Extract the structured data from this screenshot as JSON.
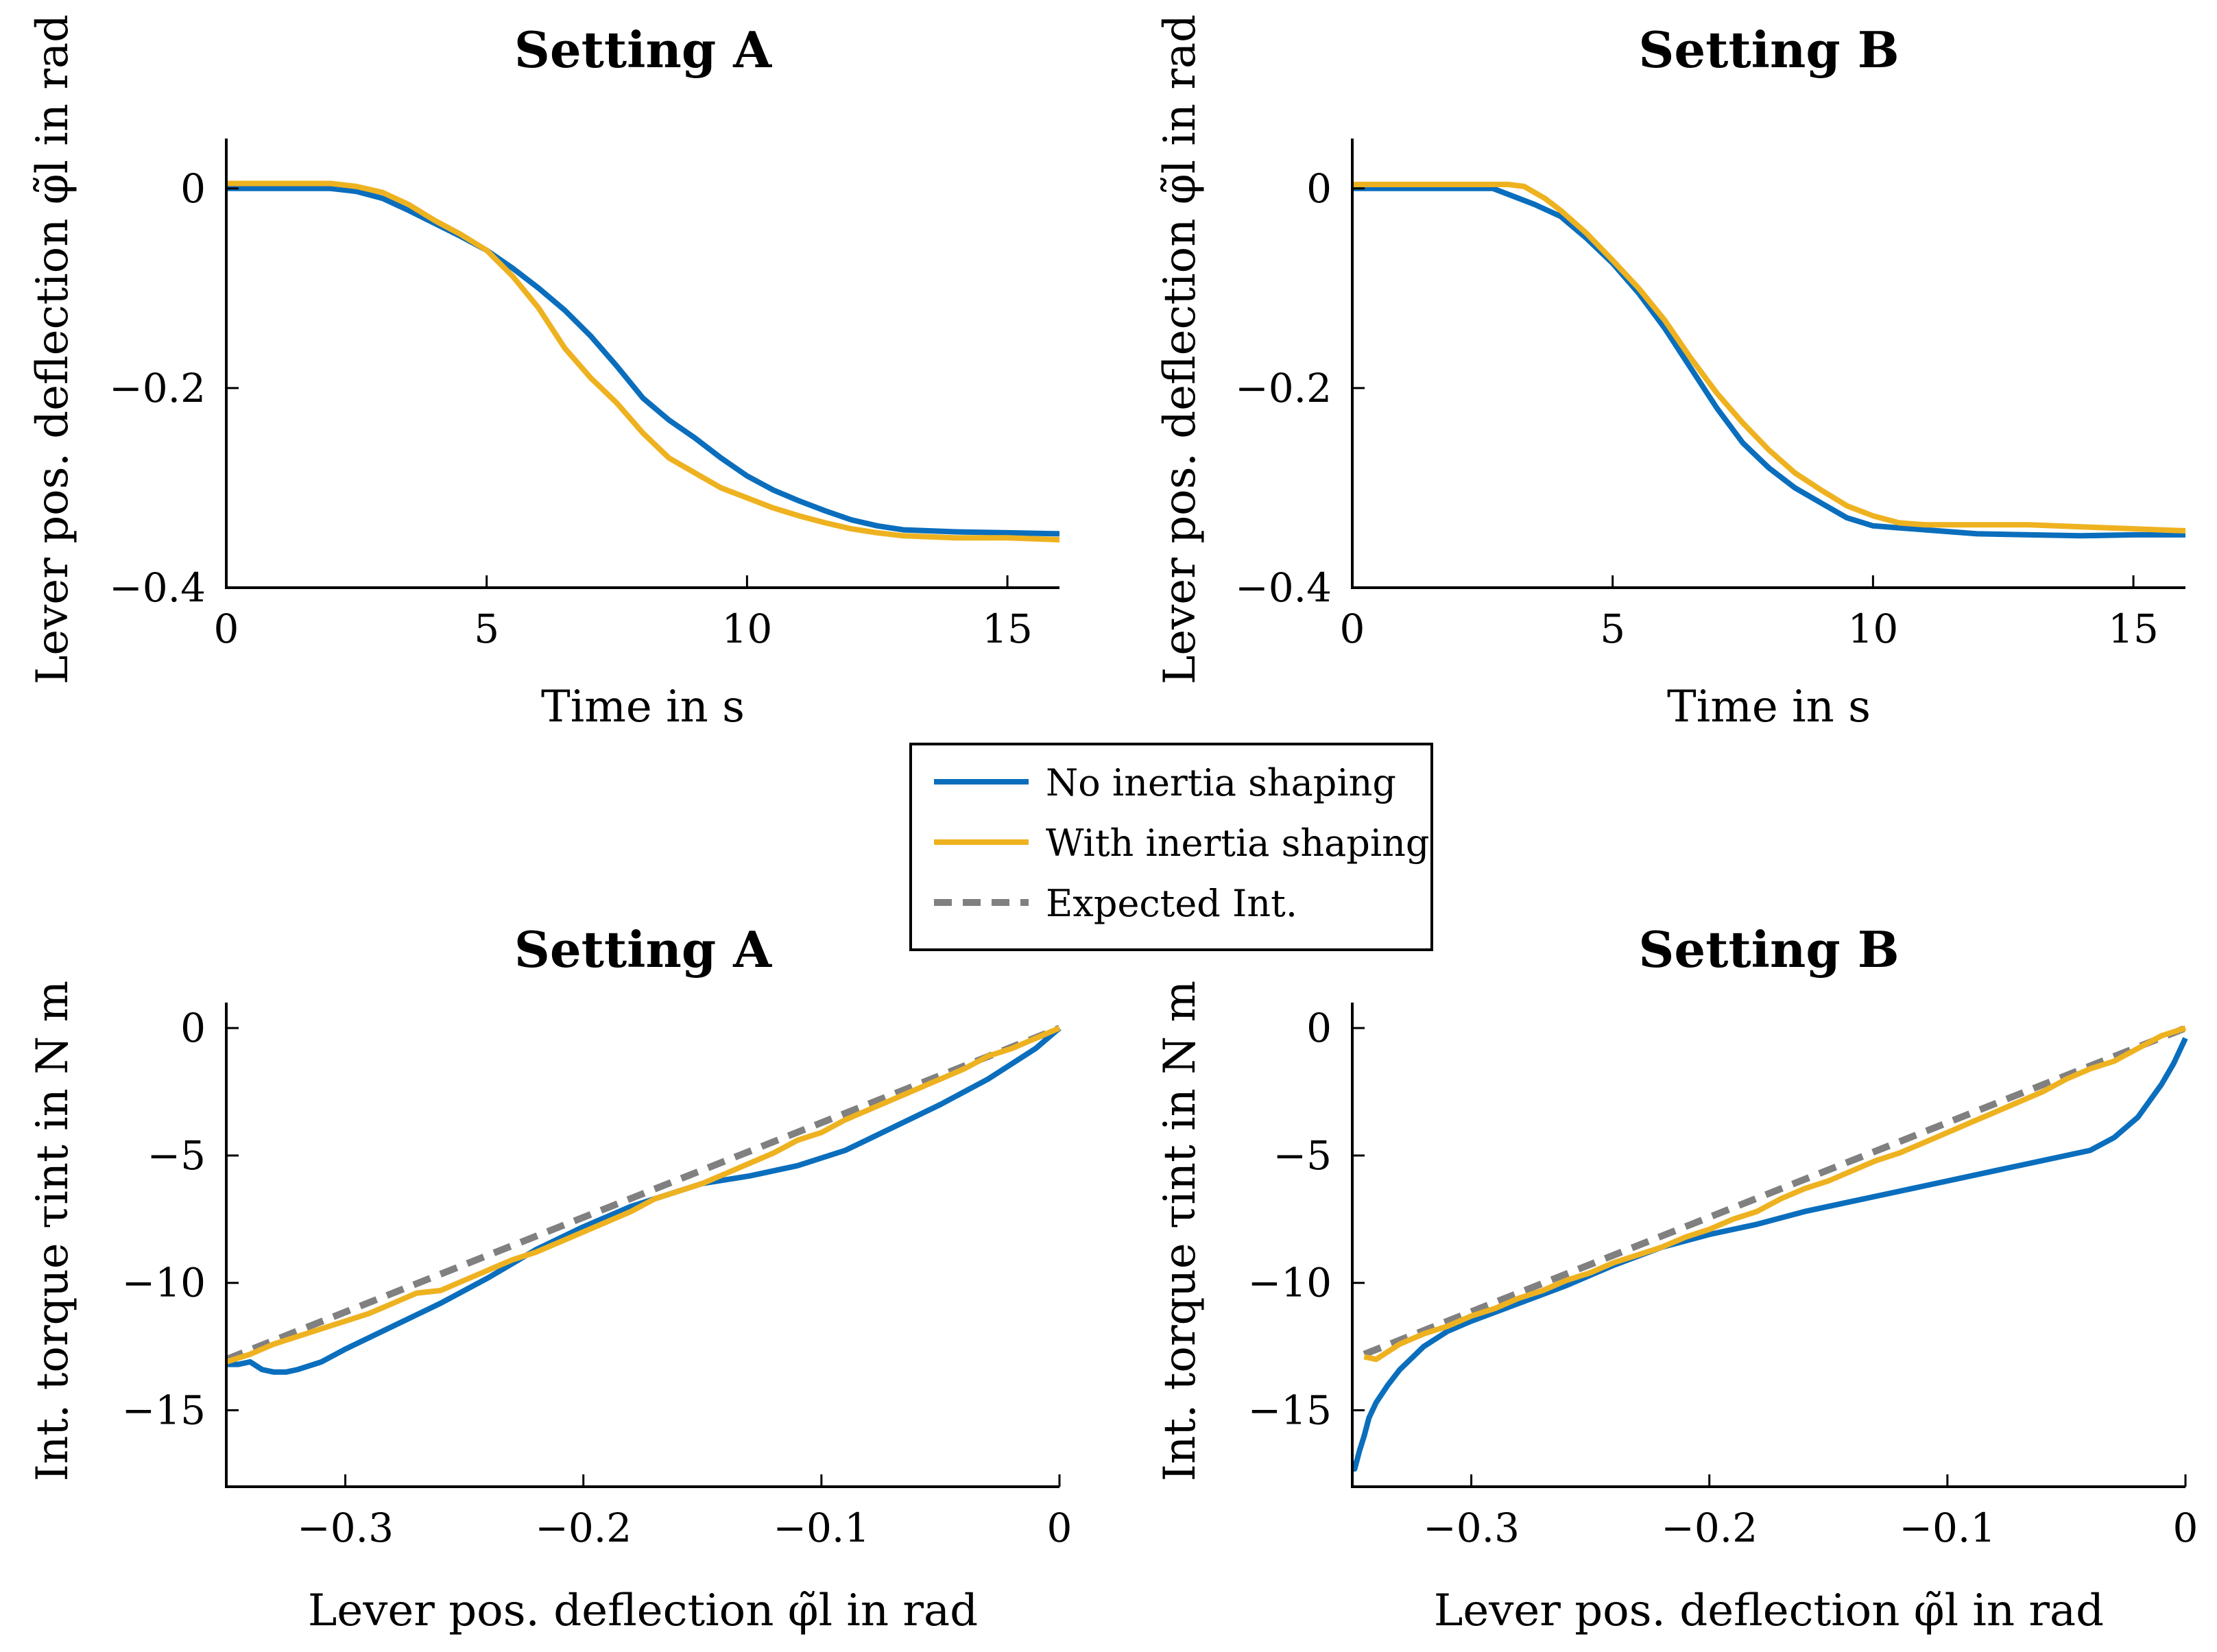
{
  "legend": {
    "placement": "center",
    "entries": [
      {
        "label": "No inertia shaping",
        "color": "#0a6ebd",
        "style": "solid"
      },
      {
        "label": "With inertia shaping",
        "color": "#eeb220",
        "style": "solid"
      },
      {
        "label": "Expected Int.",
        "color": "#808080",
        "style": "dashed"
      }
    ]
  },
  "chart_data": [
    {
      "type": "line",
      "title": "Setting A",
      "xlabel": "Time in s",
      "ylabel": "Lever pos. deflection φ̃l in rad",
      "xlim": [
        0,
        16
      ],
      "ylim": [
        -0.4,
        0.05
      ],
      "xticks": [
        0,
        5,
        10,
        15
      ],
      "xtick_labels": [
        "0",
        "5",
        "10",
        "15"
      ],
      "yticks": [
        0,
        -0.2,
        -0.4
      ],
      "ytick_labels": [
        "0",
        "−0.2",
        "−0.4"
      ],
      "series": [
        {
          "name": "No inertia shaping",
          "color": "#0a6ebd",
          "x": [
            0,
            1,
            2,
            2.5,
            3,
            3.5,
            4,
            4.5,
            5,
            5.5,
            6,
            6.5,
            7,
            7.5,
            8,
            8.5,
            9,
            9.5,
            10,
            10.5,
            11,
            11.5,
            12,
            12.5,
            13,
            14,
            15,
            16
          ],
          "y": [
            0,
            0,
            0,
            -0.003,
            -0.01,
            -0.022,
            -0.035,
            -0.048,
            -0.062,
            -0.08,
            -0.1,
            -0.122,
            -0.148,
            -0.178,
            -0.21,
            -0.232,
            -0.25,
            -0.27,
            -0.288,
            -0.302,
            -0.313,
            -0.323,
            -0.332,
            -0.338,
            -0.342,
            -0.344,
            -0.345,
            -0.346
          ]
        },
        {
          "name": "With inertia shaping",
          "color": "#eeb220",
          "x": [
            0,
            1,
            2,
            2.5,
            3,
            3.5,
            4,
            4.5,
            5,
            5.5,
            6,
            6.5,
            7,
            7.5,
            8,
            8.5,
            9,
            9.5,
            10,
            10.5,
            11,
            11.5,
            12,
            12.5,
            13,
            14,
            15,
            16
          ],
          "y": [
            0.005,
            0.005,
            0.005,
            0.002,
            -0.004,
            -0.016,
            -0.032,
            -0.046,
            -0.062,
            -0.088,
            -0.12,
            -0.16,
            -0.19,
            -0.215,
            -0.245,
            -0.27,
            -0.285,
            -0.3,
            -0.31,
            -0.32,
            -0.328,
            -0.335,
            -0.341,
            -0.345,
            -0.348,
            -0.35,
            -0.35,
            -0.352
          ]
        }
      ]
    },
    {
      "type": "line",
      "title": "Setting B",
      "xlabel": "Time in s",
      "ylabel": "Lever pos. deflection φ̃l in rad",
      "xlim": [
        0,
        16
      ],
      "ylim": [
        -0.4,
        0.05
      ],
      "xticks": [
        0,
        5,
        10,
        15
      ],
      "xtick_labels": [
        "0",
        "5",
        "10",
        "15"
      ],
      "yticks": [
        0,
        -0.2,
        -0.4
      ],
      "ytick_labels": [
        "0",
        "−0.2",
        "−0.4"
      ],
      "series": [
        {
          "name": "No inertia shaping",
          "color": "#0a6ebd",
          "x": [
            0,
            1,
            2,
            2.7,
            3,
            3.5,
            4,
            4.5,
            5,
            5.5,
            6,
            6.5,
            7,
            7.5,
            8,
            8.5,
            9,
            9.5,
            10,
            10.5,
            11,
            12,
            13,
            14,
            15,
            16
          ],
          "y": [
            0,
            0,
            0,
            0,
            -0.006,
            -0.016,
            -0.028,
            -0.05,
            -0.075,
            -0.105,
            -0.14,
            -0.18,
            -0.22,
            -0.255,
            -0.28,
            -0.3,
            -0.315,
            -0.33,
            -0.338,
            -0.34,
            -0.342,
            -0.346,
            -0.347,
            -0.348,
            -0.347,
            -0.347
          ]
        },
        {
          "name": "With inertia shaping",
          "color": "#eeb220",
          "x": [
            0,
            1,
            2,
            3,
            3.3,
            3.7,
            4,
            4.5,
            5,
            5.5,
            6,
            6.5,
            7,
            7.5,
            8,
            8.5,
            9,
            9.5,
            10,
            10.5,
            11,
            12,
            13,
            14,
            15,
            16
          ],
          "y": [
            0.004,
            0.004,
            0.004,
            0.004,
            0.002,
            -0.01,
            -0.022,
            -0.045,
            -0.072,
            -0.1,
            -0.132,
            -0.17,
            -0.205,
            -0.235,
            -0.262,
            -0.285,
            -0.302,
            -0.318,
            -0.328,
            -0.335,
            -0.337,
            -0.337,
            -0.337,
            -0.339,
            -0.341,
            -0.343
          ]
        }
      ]
    },
    {
      "type": "line",
      "title": "Setting A",
      "xlabel": "Lever pos. deflection φ̃l in rad",
      "ylabel": "Int. torque τint in N m",
      "xlim": [
        -0.35,
        0
      ],
      "ylim": [
        -18,
        1
      ],
      "xticks": [
        -0.3,
        -0.2,
        -0.1,
        0
      ],
      "xtick_labels": [
        "−0.3",
        "−0.2",
        "−0.1",
        "0"
      ],
      "yticks": [
        0,
        -5,
        -10,
        -15
      ],
      "ytick_labels": [
        "0",
        "−5",
        "−10",
        "−15"
      ],
      "series": [
        {
          "name": "No inertia shaping",
          "color": "#0a6ebd",
          "x": [
            -0.35,
            -0.345,
            -0.34,
            -0.335,
            -0.33,
            -0.325,
            -0.32,
            -0.31,
            -0.3,
            -0.28,
            -0.26,
            -0.24,
            -0.22,
            -0.2,
            -0.18,
            -0.17,
            -0.15,
            -0.13,
            -0.11,
            -0.09,
            -0.07,
            -0.05,
            -0.03,
            -0.01,
            0
          ],
          "y": [
            -13.2,
            -13.2,
            -13.1,
            -13.4,
            -13.5,
            -13.5,
            -13.4,
            -13.1,
            -12.6,
            -11.7,
            -10.8,
            -9.8,
            -8.7,
            -7.8,
            -7.0,
            -6.7,
            -6.1,
            -5.8,
            -5.4,
            -4.8,
            -3.9,
            -3.0,
            -2.0,
            -0.8,
            0
          ]
        },
        {
          "name": "With inertia shaping",
          "color": "#eeb220",
          "x": [
            -0.35,
            -0.34,
            -0.33,
            -0.32,
            -0.31,
            -0.3,
            -0.29,
            -0.28,
            -0.27,
            -0.26,
            -0.25,
            -0.24,
            -0.23,
            -0.22,
            -0.21,
            -0.2,
            -0.19,
            -0.18,
            -0.17,
            -0.16,
            -0.15,
            -0.14,
            -0.13,
            -0.12,
            -0.11,
            -0.1,
            -0.09,
            -0.08,
            -0.07,
            -0.06,
            -0.05,
            -0.04,
            -0.03,
            -0.02,
            -0.01,
            0
          ],
          "y": [
            -13.1,
            -12.8,
            -12.4,
            -12.1,
            -11.8,
            -11.5,
            -11.2,
            -10.8,
            -10.4,
            -10.3,
            -9.9,
            -9.5,
            -9.1,
            -8.8,
            -8.4,
            -8.0,
            -7.6,
            -7.2,
            -6.7,
            -6.4,
            -6.1,
            -5.7,
            -5.3,
            -4.9,
            -4.4,
            -4.1,
            -3.6,
            -3.2,
            -2.8,
            -2.4,
            -2.0,
            -1.6,
            -1.1,
            -0.8,
            -0.4,
            0
          ]
        },
        {
          "name": "Expected Int.",
          "color": "#808080",
          "style": "dashed",
          "x": [
            -0.35,
            0
          ],
          "y": [
            -13.0,
            0
          ]
        }
      ]
    },
    {
      "type": "line",
      "title": "Setting B",
      "xlabel": "Lever pos. deflection φ̃l in rad",
      "ylabel": "Int. torque τint in N m",
      "xlim": [
        -0.35,
        0
      ],
      "ylim": [
        -18,
        1
      ],
      "xticks": [
        -0.3,
        -0.2,
        -0.1,
        0
      ],
      "xtick_labels": [
        "−0.3",
        "−0.2",
        "−0.1",
        "0"
      ],
      "yticks": [
        0,
        -5,
        -10,
        -15
      ],
      "ytick_labels": [
        "0",
        "−5",
        "−10",
        "−15"
      ],
      "series": [
        {
          "name": "No inertia shaping",
          "color": "#0a6ebd",
          "x": [
            -0.35,
            -0.349,
            -0.347,
            -0.345,
            -0.343,
            -0.34,
            -0.335,
            -0.33,
            -0.32,
            -0.31,
            -0.3,
            -0.28,
            -0.26,
            -0.24,
            -0.22,
            -0.2,
            -0.18,
            -0.16,
            -0.14,
            -0.12,
            -0.1,
            -0.08,
            -0.06,
            -0.04,
            -0.03,
            -0.02,
            -0.01,
            -0.005,
            0
          ],
          "y": [
            -17.0,
            -17.3,
            -16.6,
            -16.0,
            -15.3,
            -14.7,
            -14.0,
            -13.4,
            -12.5,
            -11.9,
            -11.5,
            -10.8,
            -10.1,
            -9.3,
            -8.6,
            -8.1,
            -7.7,
            -7.2,
            -6.8,
            -6.4,
            -6.0,
            -5.6,
            -5.2,
            -4.8,
            -4.3,
            -3.5,
            -2.2,
            -1.4,
            -0.4
          ]
        },
        {
          "name": "With inertia shaping",
          "color": "#eeb220",
          "x": [
            -0.345,
            -0.34,
            -0.33,
            -0.32,
            -0.31,
            -0.3,
            -0.29,
            -0.28,
            -0.27,
            -0.26,
            -0.25,
            -0.24,
            -0.23,
            -0.22,
            -0.21,
            -0.2,
            -0.19,
            -0.18,
            -0.17,
            -0.16,
            -0.15,
            -0.14,
            -0.13,
            -0.12,
            -0.11,
            -0.1,
            -0.09,
            -0.08,
            -0.07,
            -0.06,
            -0.05,
            -0.04,
            -0.03,
            -0.02,
            -0.01,
            0
          ],
          "y": [
            -12.9,
            -13.0,
            -12.4,
            -12.0,
            -11.7,
            -11.3,
            -11.0,
            -10.6,
            -10.3,
            -9.9,
            -9.6,
            -9.2,
            -8.9,
            -8.6,
            -8.2,
            -7.9,
            -7.5,
            -7.2,
            -6.7,
            -6.3,
            -6.0,
            -5.6,
            -5.2,
            -4.9,
            -4.5,
            -4.1,
            -3.7,
            -3.3,
            -2.9,
            -2.5,
            -2.0,
            -1.6,
            -1.3,
            -0.8,
            -0.3,
            0
          ]
        },
        {
          "name": "Expected Int.",
          "color": "#808080",
          "style": "dashed",
          "x": [
            -0.345,
            0
          ],
          "y": [
            -12.8,
            0
          ]
        }
      ]
    }
  ]
}
